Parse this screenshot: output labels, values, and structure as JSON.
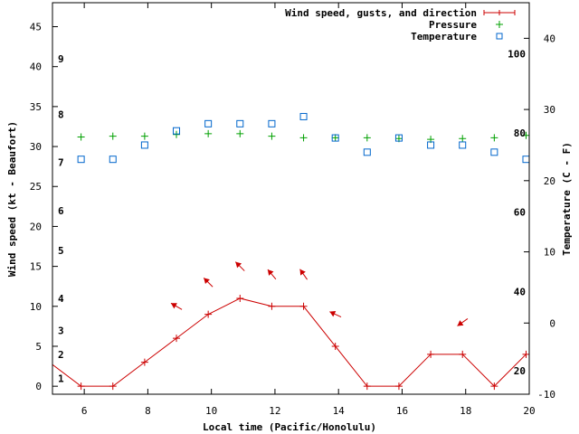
{
  "chart_data": {
    "type": "line",
    "xlabel": "Local time (Pacific/Honolulu)",
    "ylabel": "Wind speed (kt - Beaufort)",
    "y2label": "Temperature (C - F)",
    "xlim": [
      5,
      20
    ],
    "ylim": [
      -1,
      48
    ],
    "y2lim": [
      -10,
      45
    ],
    "x_ticks": [
      "6",
      "8",
      "10",
      "12",
      "14",
      "16",
      "18",
      "20"
    ],
    "y_ticks": [
      "0",
      "5",
      "10",
      "15",
      "20",
      "25",
      "30",
      "35",
      "40",
      "45"
    ],
    "y2_ticks": [
      "-10",
      "0",
      "10",
      "20",
      "30",
      "40"
    ],
    "beaufort_labels": [
      {
        "label": "1",
        "speed": 1
      },
      {
        "label": "2",
        "speed": 4
      },
      {
        "label": "3",
        "speed": 7
      },
      {
        "label": "4",
        "speed": 11
      },
      {
        "label": "5",
        "speed": 17
      },
      {
        "label": "6",
        "speed": 22
      },
      {
        "label": "7",
        "speed": 28
      },
      {
        "label": "8",
        "speed": 34
      },
      {
        "label": "9",
        "speed": 41
      }
    ],
    "fahrenheit_labels": [
      {
        "label": "20",
        "celsius": -6.7
      },
      {
        "label": "40",
        "celsius": 4.4
      },
      {
        "label": "60",
        "celsius": 15.6
      },
      {
        "label": "80",
        "celsius": 26.7
      },
      {
        "label": "100",
        "celsius": 37.8
      }
    ],
    "legend": [
      "Wind speed, gusts, and direction",
      "Pressure",
      "Temperature"
    ],
    "colors": {
      "wind": "#cc0000",
      "pressure": "#00a000",
      "temperature": "#0066cc"
    },
    "series": [
      {
        "name": "Wind speed, gusts, and direction",
        "x": [
          4.9,
          5.9,
          6.9,
          7.9,
          8.9,
          9.9,
          10.9,
          11.9,
          12.9,
          13.9,
          14.9,
          15.9,
          16.9,
          17.9,
          18.9,
          19.9
        ],
        "values": [
          3,
          0,
          0,
          3,
          6,
          9,
          11,
          10,
          10,
          5,
          0,
          0,
          4,
          4,
          0,
          4
        ]
      },
      {
        "name": "Pressure",
        "x": [
          5.9,
          6.9,
          7.9,
          8.9,
          9.9,
          10.9,
          11.9,
          12.9,
          13.9,
          14.9,
          15.9,
          16.9,
          17.9,
          18.9,
          19.9
        ],
        "values": [
          31.2,
          31.3,
          31.3,
          31.5,
          31.6,
          31.6,
          31.3,
          31.1,
          31.1,
          31.1,
          31.0,
          30.9,
          31.0,
          31.1,
          31.4
        ]
      },
      {
        "name": "Temperature",
        "x": [
          5.9,
          6.9,
          7.9,
          8.9,
          9.9,
          10.9,
          11.9,
          12.9,
          13.9,
          14.9,
          15.9,
          16.9,
          17.9,
          18.9,
          19.9
        ],
        "values": [
          23,
          23,
          25,
          27,
          28,
          28,
          28,
          29,
          26,
          24,
          26,
          25,
          25,
          24,
          23
        ]
      }
    ],
    "wind_direction_arrows": [
      {
        "x": 8.9,
        "speed": 10,
        "direction": "SE",
        "dir_deg": 120
      },
      {
        "x": 9.9,
        "speed": 13,
        "direction": "SE",
        "dir_deg": 135
      },
      {
        "x": 10.9,
        "speed": 15,
        "direction": "SE",
        "dir_deg": 135
      },
      {
        "x": 11.9,
        "speed": 14,
        "direction": "SE",
        "dir_deg": 140
      },
      {
        "x": 12.9,
        "speed": 14,
        "direction": "SE",
        "dir_deg": 145
      },
      {
        "x": 13.9,
        "speed": 9,
        "direction": "ESE",
        "dir_deg": 115
      },
      {
        "x": 17.9,
        "speed": 8,
        "direction": "NE",
        "dir_deg": 55
      }
    ]
  }
}
